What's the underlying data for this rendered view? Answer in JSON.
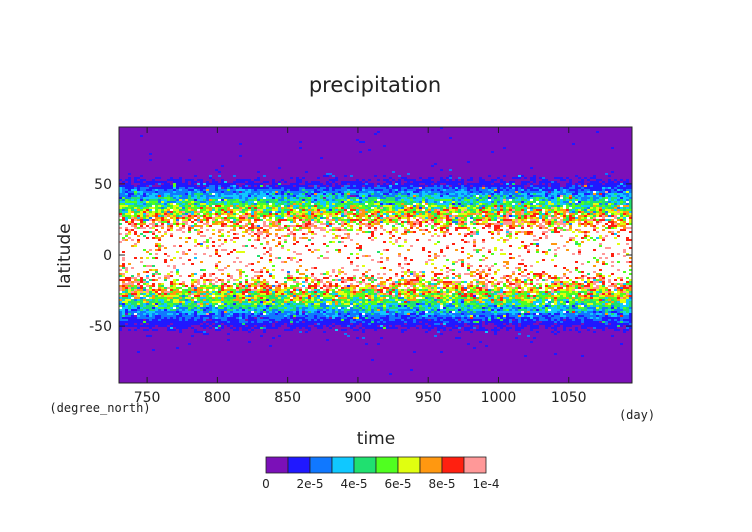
{
  "chart_data": {
    "type": "heatmap",
    "title": "precipitation",
    "xlabel": "time",
    "ylabel": "latitude",
    "x_unit": "(day)",
    "y_unit": "(degree_north)",
    "xlim": [
      730,
      1095
    ],
    "ylim": [
      -90,
      90
    ],
    "x_ticks": [
      750,
      800,
      850,
      900,
      950,
      1000,
      1050
    ],
    "y_ticks": [
      -50,
      0,
      50
    ],
    "colorbar": {
      "levels": [
        0,
        1e-05,
        2e-05,
        3e-05,
        4e-05,
        5e-05,
        6e-05,
        7e-05,
        8e-05,
        9e-05,
        0.0001
      ],
      "tick_labels": [
        "0",
        "2e-5",
        "4e-5",
        "6e-5",
        "8e-5",
        "1e-4"
      ],
      "colors": [
        "#7b10b8",
        "#2018ff",
        "#1078ff",
        "#10c8ff",
        "#20e070",
        "#50ff20",
        "#e0ff10",
        "#ff9810",
        "#ff2010",
        "#ff9898"
      ]
    },
    "latitude_profile": [
      {
        "lat": 90,
        "value": 2e-06
      },
      {
        "lat": 60,
        "value": 3e-06
      },
      {
        "lat": 50,
        "value": 1.2e-05
      },
      {
        "lat": 45,
        "value": 2.4e-05
      },
      {
        "lat": 40,
        "value": 3.6e-05
      },
      {
        "lat": 35,
        "value": 5e-05
      },
      {
        "lat": 30,
        "value": 6.4e-05
      },
      {
        "lat": 25,
        "value": 7.8e-05
      },
      {
        "lat": 20,
        "value": 9.4e-05
      },
      {
        "lat": 15,
        "value": 0.000115
      },
      {
        "lat": 10,
        "value": 0.00013
      },
      {
        "lat": 0,
        "value": 0.00014
      },
      {
        "lat": -10,
        "value": 0.00013
      },
      {
        "lat": -15,
        "value": 0.000105
      },
      {
        "lat": -20,
        "value": 8.8e-05
      },
      {
        "lat": -25,
        "value": 7.2e-05
      },
      {
        "lat": -30,
        "value": 5.8e-05
      },
      {
        "lat": -35,
        "value": 4.4e-05
      },
      {
        "lat": -40,
        "value": 3e-05
      },
      {
        "lat": -45,
        "value": 1.9e-05
      },
      {
        "lat": -50,
        "value": 1.1e-05
      },
      {
        "lat": -60,
        "value": 3e-06
      },
      {
        "lat": -90,
        "value": 2e-06
      }
    ]
  }
}
